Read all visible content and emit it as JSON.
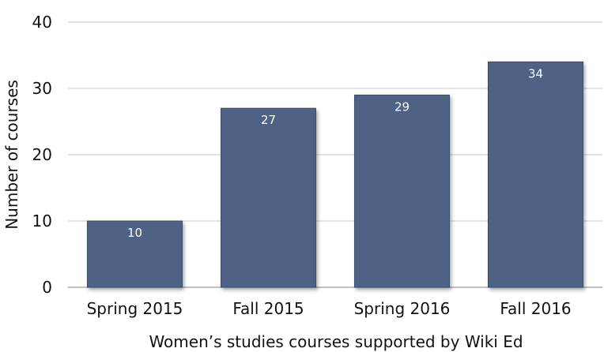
{
  "chart_data": {
    "type": "bar",
    "title": "",
    "xlabel": "Women’s studies courses supported by Wiki Ed",
    "ylabel": "Number of courses",
    "categories": [
      "Spring 2015",
      "Fall 2015",
      "Spring 2016",
      "Fall 2016"
    ],
    "values": [
      10,
      27,
      29,
      34
    ],
    "data_labels": [
      "10",
      "27",
      "29",
      "34"
    ],
    "ylim": [
      0,
      40
    ],
    "yticks": [
      "0",
      "10",
      "20",
      "30",
      "40"
    ],
    "grid": true,
    "legend": "none",
    "colors": {
      "bar": "#4d6284",
      "bar_edge": "#3a4d6a",
      "label": "#ffffff"
    }
  }
}
